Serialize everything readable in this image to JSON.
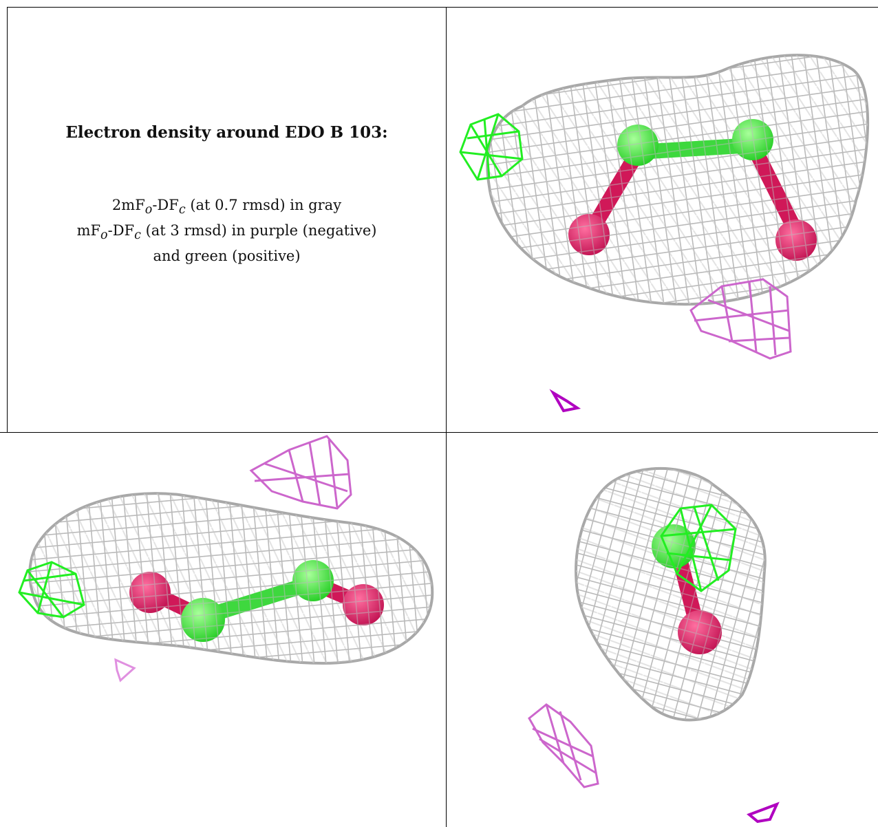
{
  "title": "Electron density around EDO B 103:",
  "legend": {
    "line1_lead": "2mF",
    "line1_sub_o": "o",
    "line1_mid": "-DF",
    "line1_sub_c": "c",
    "line1_tail": " (at 0.7 rmsd) in gray",
    "line2_lead": "mF",
    "line2_sub_o": "o",
    "line2_mid": "-DF",
    "line2_sub_c": "c",
    "line2_tail": " (at 3 rmsd) in purple (negative)",
    "line3": "and green (positive)"
  },
  "colors": {
    "gray_mesh": "#b9b9b9",
    "negative": "#cc66cc",
    "negative_dark": "#b000c0",
    "positive": "#22ee22",
    "carbon": "#44dd44",
    "oxygen": "#e02060"
  }
}
